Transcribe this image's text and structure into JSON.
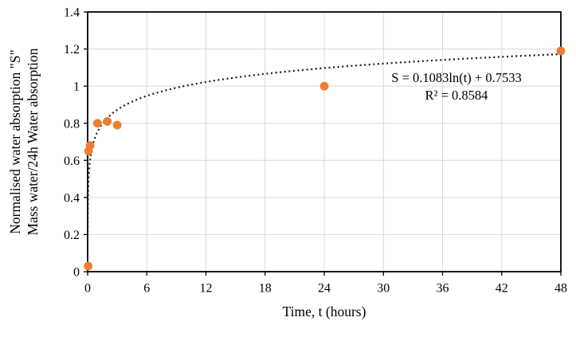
{
  "chart_data": {
    "type": "scatter",
    "title": "",
    "xlabel": "Time, t (hours)",
    "ylabel_lines": [
      "Normalised water absorption \"S\"",
      "Mass water/24h Water absorption"
    ],
    "xlim": [
      0,
      48
    ],
    "ylim": [
      0,
      1.4
    ],
    "xticks": [
      0,
      6,
      12,
      18,
      24,
      30,
      36,
      42,
      48
    ],
    "yticks": [
      0,
      0.2,
      0.4,
      0.6,
      0.8,
      1,
      1.2,
      1.4
    ],
    "grid": true,
    "legend": "none",
    "series": [
      {
        "name": "Normalised water absorption",
        "marker": "circle",
        "points": [
          {
            "t": 0.05,
            "s": 0.03
          },
          {
            "t": 0.083,
            "s": 0.65
          },
          {
            "t": 0.25,
            "s": 0.68
          },
          {
            "t": 1,
            "s": 0.8
          },
          {
            "t": 2,
            "s": 0.81
          },
          {
            "t": 3,
            "s": 0.79
          },
          {
            "t": 24,
            "s": 1.0
          },
          {
            "t": 48,
            "s": 1.19
          }
        ]
      }
    ],
    "trendline": {
      "type": "logarithmic",
      "a": 0.1083,
      "b": 0.7533,
      "t_start": 0.007,
      "t_end": 48,
      "equation_label": "S = 0.1083ln(t) + 0.7533",
      "r_squared_label": "R² = 0.8584"
    },
    "colors": {
      "marker": "#ED7D31",
      "trendline": "#1a1a1a",
      "gridline": "#D9D9D9",
      "axis": "#000000",
      "text": "#000000",
      "background": "#FFFFFF"
    }
  }
}
